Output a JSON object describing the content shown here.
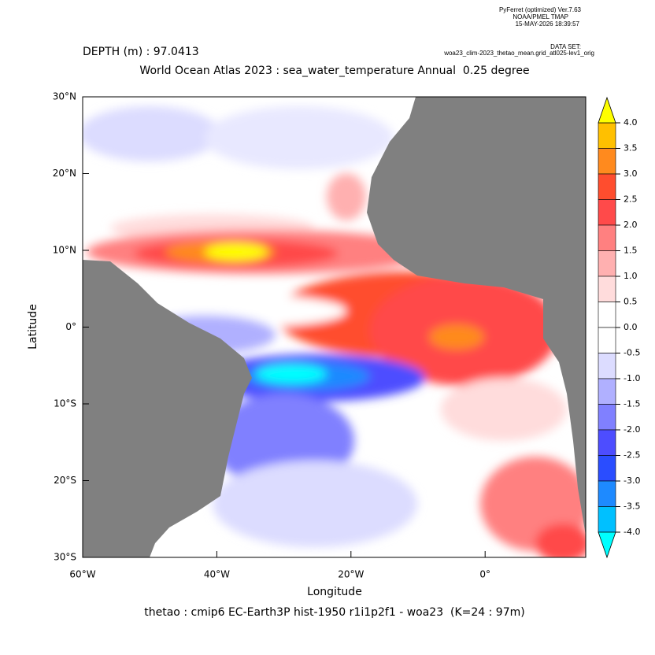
{
  "header": {
    "software": "PyFerret (optimized) Ver.7.63",
    "org": "NOAA/PMEL TMAP",
    "timestamp": "15-MAY-2026 18:39:57",
    "dataset_label": "DATA SET:",
    "dataset": "woa23_clim-2023_thetao_mean.grid_atl025-lev1_orig",
    "depth": "DEPTH (m) : 97.0413",
    "title": "World Ocean Atlas 2023 : sea_water_temperature Annual  0.25 degree"
  },
  "map": {
    "xlabel": "Longitude",
    "ylabel": "Latitude",
    "xlim": [
      -60,
      15
    ],
    "ylim": [
      -30,
      30
    ],
    "xticks": [
      {
        "value": -60,
        "label": "60°W"
      },
      {
        "value": -40,
        "label": "40°W"
      },
      {
        "value": -20,
        "label": "20°W"
      },
      {
        "value": 0,
        "label": "0°"
      }
    ],
    "yticks": [
      {
        "value": 30,
        "label": "30°N"
      },
      {
        "value": 20,
        "label": "20°N"
      },
      {
        "value": 10,
        "label": "10°N"
      },
      {
        "value": 0,
        "label": "0°"
      },
      {
        "value": -10,
        "label": "10°S"
      },
      {
        "value": -20,
        "label": "20°S"
      },
      {
        "value": -30,
        "label": "30°S"
      }
    ],
    "land_color": "#808080",
    "footer": "thetao : cmip6 EC-Earth3P hist-1950 r1i1p2f1 - woa23  (K=24 : 97m)"
  },
  "colorbar": {
    "range": [
      -4,
      4
    ],
    "levels": [
      {
        "value": 4,
        "label": "4.0"
      },
      {
        "value": 3.5,
        "label": "3.5"
      },
      {
        "value": 3,
        "label": "3.0"
      },
      {
        "value": 2.5,
        "label": "2.5"
      },
      {
        "value": 2,
        "label": "2.0"
      },
      {
        "value": 1.5,
        "label": "1.5"
      },
      {
        "value": 1,
        "label": "1.0"
      },
      {
        "value": 0.5,
        "label": "0.5"
      },
      {
        "value": 0,
        "label": "0.0"
      },
      {
        "value": -0.5,
        "label": "-0.5"
      },
      {
        "value": -1,
        "label": "-1.0"
      },
      {
        "value": -1.5,
        "label": "-1.5"
      },
      {
        "value": -2,
        "label": "-2.0"
      },
      {
        "value": -2.5,
        "label": "-2.5"
      },
      {
        "value": -3,
        "label": "-3.0"
      },
      {
        "value": -3.5,
        "label": "-3.5"
      },
      {
        "value": -4,
        "label": "-4.0"
      }
    ],
    "colors": [
      "#ffc000",
      "#ff8a1e",
      "#ff4d2e",
      "#ff4a4a",
      "#ff8080",
      "#ffb0b0",
      "#ffdcdc",
      "#ffffff",
      "#ffffff",
      "#dcdcff",
      "#b0b0ff",
      "#8080ff",
      "#4d4dff",
      "#2a4dff",
      "#1e8aff",
      "#00c0ff"
    ],
    "over_color": "#ffff00",
    "under_color": "#00ffff"
  }
}
